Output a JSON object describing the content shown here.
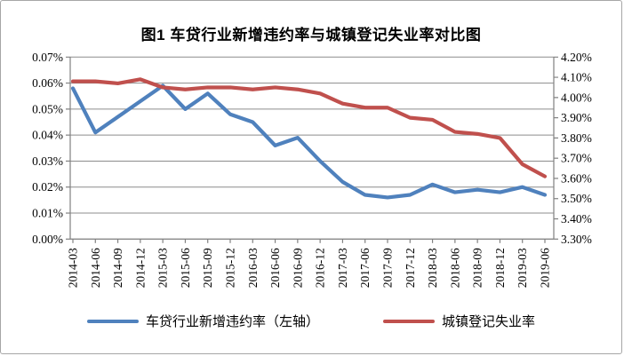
{
  "chart_data": {
    "type": "line",
    "title": "图1 车贷行业新增违约率与城镇登记失业率对比图",
    "categories": [
      "2014-03",
      "2014-06",
      "2014-09",
      "2014-12",
      "2015-03",
      "2015-06",
      "2015-09",
      "2015-12",
      "2016-03",
      "2016-06",
      "2016-09",
      "2016-12",
      "2017-03",
      "2017-06",
      "2017-09",
      "2017-12",
      "2018-03",
      "2018-06",
      "2018-09",
      "2018-12",
      "2019-03",
      "2019-06"
    ],
    "series": [
      {
        "name": "车贷行业新增违约率（左轴）",
        "axis": "left",
        "color": "#4F81BD",
        "values": [
          0.058,
          0.041,
          0.047,
          0.053,
          0.059,
          0.05,
          0.056,
          0.048,
          0.045,
          0.036,
          0.039,
          0.03,
          0.022,
          0.017,
          0.016,
          0.017,
          0.021,
          0.018,
          0.019,
          0.018,
          0.02,
          0.017
        ]
      },
      {
        "name": "城镇登记失业率",
        "axis": "right",
        "color": "#C0504D",
        "values": [
          4.08,
          4.08,
          4.07,
          4.09,
          4.05,
          4.04,
          4.05,
          4.05,
          4.04,
          4.05,
          4.04,
          4.02,
          3.97,
          3.95,
          3.95,
          3.9,
          3.89,
          3.83,
          3.82,
          3.8,
          3.67,
          3.61
        ]
      }
    ],
    "left_axis": {
      "min": 0.0,
      "max": 0.07,
      "step": 0.01,
      "tick_labels": [
        "0.07%",
        "0.06%",
        "0.05%",
        "0.04%",
        "0.03%",
        "0.02%",
        "0.01%",
        "0.00%"
      ]
    },
    "right_axis": {
      "min": 3.3,
      "max": 4.2,
      "step": 0.1,
      "tick_labels": [
        "4.20%",
        "4.10%",
        "4.00%",
        "3.90%",
        "3.80%",
        "3.70%",
        "3.60%",
        "3.50%",
        "3.40%",
        "3.30%"
      ]
    },
    "grid": true,
    "legend_position": "bottom",
    "colors": {
      "gridline": "#8C8C8C",
      "axis": "#808080",
      "text": "#000000",
      "frame_border": "#A6A6A6"
    }
  }
}
